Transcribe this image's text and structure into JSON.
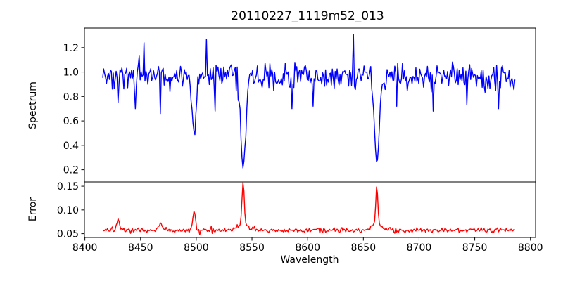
{
  "chart_data": {
    "type": "line",
    "title": "20110227_1119m52_013",
    "xlabel": "Wavelength",
    "background": "#ffffff",
    "axis_color": "#000000",
    "text_color": "#000000",
    "grid": false,
    "legend": null,
    "x_range": [
      8399.6,
      8804.6
    ],
    "x_ticks": [
      8400,
      8450,
      8500,
      8550,
      8600,
      8650,
      8700,
      8750,
      8800
    ],
    "x_data_range": [
      8416,
      8786
    ],
    "n_points": 430,
    "noise_seed": 20110227,
    "panels": [
      {
        "name": "spectrum",
        "ylabel": "Spectrum",
        "color": "#0000ff",
        "y_range": [
          0.1,
          1.36
        ],
        "y_ticks": [
          0.2,
          0.4,
          0.6,
          0.8,
          1.0,
          1.2
        ],
        "y_tick_labels": [
          "0.2",
          "0.4",
          "0.6",
          "0.8",
          "1.0",
          "1.2"
        ],
        "baseline": 0.96,
        "noise_sigma": 0.055,
        "features": [
          {
            "center": 8498.0,
            "amplitude": -0.49,
            "width": 1.8
          },
          {
            "center": 8542.1,
            "amplitude": -0.76,
            "width": 2.2
          },
          {
            "center": 8662.1,
            "amplitude": -0.7,
            "width": 2.2
          }
        ],
        "outliers": [
          {
            "x": 8430,
            "value": 0.75
          },
          {
            "x": 8445,
            "value": 0.7
          },
          {
            "x": 8453,
            "value": 1.24
          },
          {
            "x": 8468,
            "value": 0.66
          },
          {
            "x": 8509,
            "value": 1.27
          },
          {
            "x": 8517,
            "value": 0.68
          },
          {
            "x": 8586,
            "value": 0.7
          },
          {
            "x": 8605,
            "value": 0.72
          },
          {
            "x": 8641,
            "value": 1.31
          },
          {
            "x": 8680,
            "value": 0.72
          },
          {
            "x": 8713,
            "value": 0.68
          },
          {
            "x": 8743,
            "value": 0.73
          },
          {
            "x": 8771,
            "value": 0.7
          }
        ]
      },
      {
        "name": "error",
        "ylabel": "Error",
        "color": "#ff0000",
        "y_range": [
          0.042,
          0.159
        ],
        "y_ticks": [
          0.05,
          0.1,
          0.15
        ],
        "y_tick_labels": [
          "0.05",
          "0.10",
          "0.15"
        ],
        "baseline": 0.057,
        "noise_sigma": 0.0025,
        "features": [
          {
            "center": 8430.0,
            "amplitude": 0.024,
            "width": 1.2
          },
          {
            "center": 8468.0,
            "amplitude": 0.014,
            "width": 1.5
          },
          {
            "center": 8498.0,
            "amplitude": 0.04,
            "width": 1.2
          },
          {
            "center": 8542.1,
            "amplitude": 0.09,
            "width": 1.0
          },
          {
            "center": 8542.1,
            "amplitude": 0.013,
            "width": 5.0
          },
          {
            "center": 8662.1,
            "amplitude": 0.08,
            "width": 1.0
          },
          {
            "center": 8662.1,
            "amplitude": 0.011,
            "width": 5.0
          }
        ],
        "outliers": []
      }
    ]
  }
}
